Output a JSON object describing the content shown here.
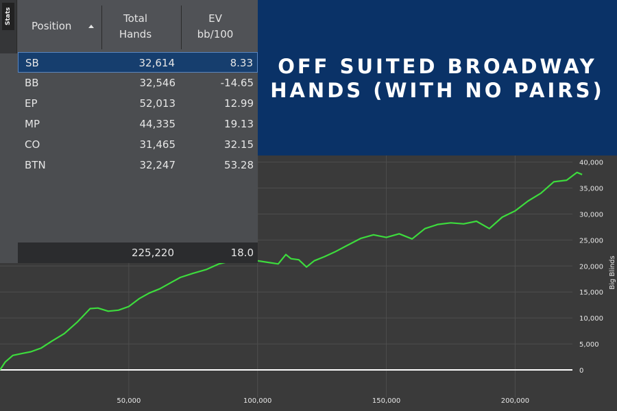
{
  "stats_panel": {
    "tab_label": "Stats",
    "columns": {
      "position": "Position",
      "hands_line1": "Total",
      "hands_line2": "Hands",
      "ev_line1": "EV",
      "ev_line2": "bb/100"
    },
    "sort_icon": "sort-ascending-icon",
    "rows": [
      {
        "position": "SB",
        "hands": "32,614",
        "ev": "8.33",
        "selected": true
      },
      {
        "position": "BB",
        "hands": "32,546",
        "ev": "-14.65",
        "selected": false
      },
      {
        "position": "EP",
        "hands": "52,013",
        "ev": "12.99",
        "selected": false
      },
      {
        "position": "MP",
        "hands": "44,335",
        "ev": "19.13",
        "selected": false
      },
      {
        "position": "CO",
        "hands": "31,465",
        "ev": "32.15",
        "selected": false
      },
      {
        "position": "BTN",
        "hands": "32,247",
        "ev": "53.28",
        "selected": false
      }
    ],
    "totals": {
      "hands": "225,220",
      "ev": "18.0"
    }
  },
  "banner": {
    "line1": "OFF SUITED BROADWAY",
    "line2": "HANDS (WITH NO PAIRS)"
  },
  "colors": {
    "line": "#3ddc3d",
    "zero_line": "#ffffff",
    "banner_bg": "#0a3267",
    "selected_row": "#163e6e"
  },
  "chart_data": {
    "type": "line",
    "ylabel": "Big Blinds",
    "xlim": [
      0,
      227000
    ],
    "ylim": [
      -2000,
      40000
    ],
    "x_ticks": [
      50000,
      100000,
      150000,
      200000
    ],
    "x_tick_labels": [
      "50,000",
      "100,000",
      "150,000",
      "200,000"
    ],
    "y_ticks": [
      0,
      5000,
      10000,
      15000,
      20000,
      25000,
      30000,
      35000,
      40000
    ],
    "y_tick_labels": [
      "0",
      "5,000",
      "10,000",
      "15,000",
      "20,000",
      "25,000",
      "30,000",
      "35,000",
      "40,000"
    ],
    "grid": true,
    "series": [
      {
        "x": [
          0,
          2000,
          5000,
          9000,
          12000,
          16000,
          20000,
          25000,
          30000,
          35000,
          38000,
          42000,
          46000,
          50000,
          54000,
          58000,
          62000,
          66000,
          70000,
          75000,
          80000,
          85000,
          90000,
          95000,
          100000,
          104000,
          108000,
          111000,
          113000,
          116000,
          119000,
          122000,
          126000,
          130000,
          135000,
          140000,
          145000,
          150000,
          155000,
          160000,
          165000,
          170000,
          175000,
          180000,
          185000,
          190000,
          195000,
          200000,
          205000,
          210000,
          215000,
          220000,
          224000,
          226000
        ],
        "y": [
          0,
          1500,
          2800,
          3200,
          3500,
          4200,
          5500,
          7000,
          9200,
          11800,
          11900,
          11300,
          11500,
          12200,
          13700,
          14800,
          15600,
          16700,
          17800,
          18600,
          19300,
          20400,
          21000,
          21200,
          21000,
          20700,
          20400,
          22200,
          21400,
          21200,
          19800,
          21000,
          21800,
          22700,
          24000,
          25300,
          26000,
          25500,
          26200,
          25200,
          27200,
          28000,
          28300,
          28100,
          28600,
          27200,
          29400,
          30600,
          32500,
          34000,
          36200,
          36500,
          38000,
          37600
        ]
      }
    ]
  }
}
